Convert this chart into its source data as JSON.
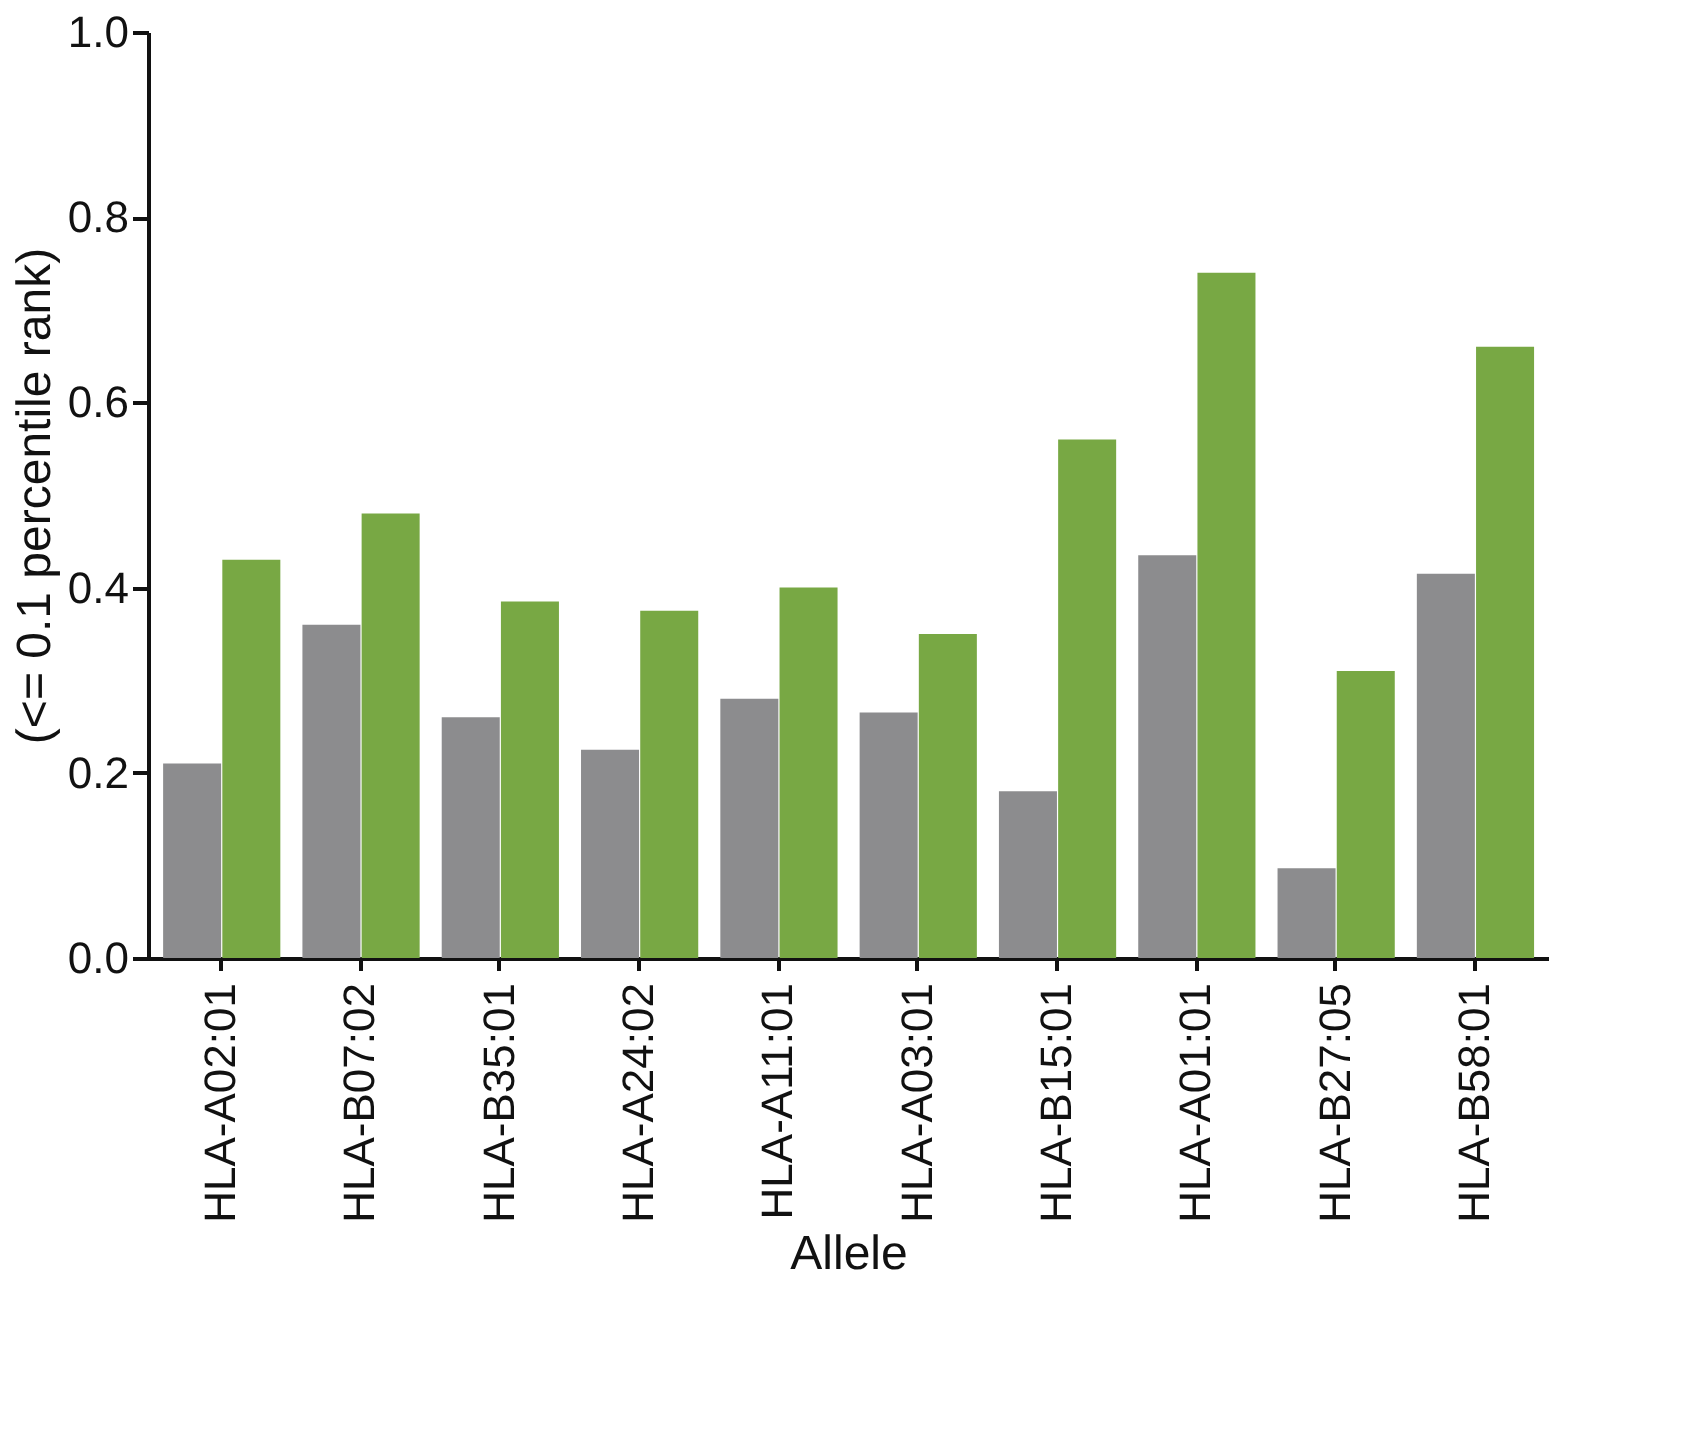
{
  "chart_data": {
    "type": "bar",
    "xlabel": "Allele",
    "ylabel": "(<= 0.1 percentile rank)",
    "categories": [
      "HLA-A02:01",
      "HLA-B07:02",
      "HLA-B35:01",
      "HLA-A24:02",
      "HLA-A11:01",
      "HLA-A03:01",
      "HLA-B15:01",
      "HLA-A01:01",
      "HLA-B27:05",
      "HLA-B58:01"
    ],
    "series": [
      {
        "color": "#8c8c8e",
        "values": [
          0.21,
          0.36,
          0.26,
          0.225,
          0.28,
          0.265,
          0.18,
          0.435,
          0.097,
          0.415
        ]
      },
      {
        "color": "#78a844",
        "values": [
          0.43,
          0.48,
          0.385,
          0.375,
          0.4,
          0.35,
          0.56,
          0.74,
          0.31,
          0.66
        ]
      }
    ],
    "ylim": [
      0,
      1
    ],
    "yticks": [
      {
        "value": 0,
        "label": "0.0"
      },
      {
        "value": 0.2,
        "label": "0.2"
      },
      {
        "value": 0.4,
        "label": "0.4"
      },
      {
        "value": 0.6,
        "label": "0.6"
      },
      {
        "value": 0.8,
        "label": "0.8"
      },
      {
        "value": 1,
        "label": "1.0"
      }
    ],
    "grid": false,
    "legend": false
  }
}
